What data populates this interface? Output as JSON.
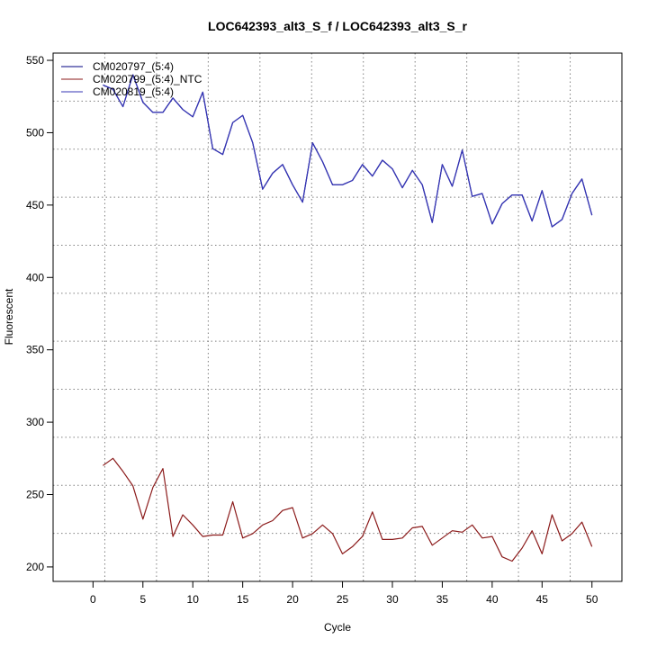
{
  "chart_data": {
    "type": "line",
    "title": "LOC642393_alt3_S_f / LOC642393_alt3_S_r",
    "xlabel": "Cycle",
    "ylabel": "Fluorescent",
    "xlim": [
      -4,
      53
    ],
    "ylim": [
      190,
      555
    ],
    "xticks": [
      0,
      5,
      10,
      15,
      20,
      25,
      30,
      35,
      40,
      45,
      50
    ],
    "yticks": [
      200,
      250,
      300,
      350,
      400,
      450,
      500,
      550
    ],
    "grid": true,
    "legend_position": "top-left",
    "x": [
      1,
      2,
      3,
      4,
      5,
      6,
      7,
      8,
      9,
      10,
      11,
      12,
      13,
      14,
      15,
      16,
      17,
      18,
      19,
      20,
      21,
      22,
      23,
      24,
      25,
      26,
      27,
      28,
      29,
      30,
      31,
      32,
      33,
      34,
      35,
      36,
      37,
      38,
      39,
      40,
      41,
      42,
      43,
      44,
      45,
      46,
      47,
      48,
      49,
      50
    ],
    "series": [
      {
        "name": "CM020797_(5:4)",
        "color": "#000080",
        "values": [
          533,
          530,
          518,
          540,
          521,
          514,
          514,
          524,
          516,
          511,
          528,
          489,
          485,
          507,
          512,
          493,
          461,
          472,
          478,
          464,
          452,
          493,
          480,
          464,
          464,
          467,
          478,
          470,
          481,
          475,
          462,
          474,
          464,
          438,
          478,
          463,
          488,
          456,
          458,
          437,
          451,
          457,
          457,
          439,
          460,
          435,
          440,
          458,
          468,
          443
        ]
      },
      {
        "name": "CM020799_(5:4)_NTC",
        "color": "#8b1a1a",
        "values": [
          270,
          275,
          266,
          256,
          233,
          255,
          268,
          221,
          236,
          229,
          221,
          222,
          222,
          245,
          220,
          223,
          229,
          232,
          239,
          241,
          220,
          223,
          229,
          223,
          209,
          214,
          221,
          238,
          219,
          219,
          220,
          227,
          228,
          215,
          220,
          225,
          224,
          229,
          220,
          221,
          207,
          204,
          213,
          225,
          209,
          236,
          218,
          223,
          231,
          214
        ]
      },
      {
        "name": "CM020819_(5:4)",
        "color": "#3535b5",
        "values": [
          533,
          530,
          518,
          540,
          521,
          514,
          514,
          524,
          516,
          511,
          528,
          489,
          485,
          507,
          512,
          493,
          461,
          472,
          478,
          464,
          452,
          493,
          480,
          464,
          464,
          467,
          478,
          470,
          481,
          475,
          462,
          474,
          464,
          438,
          478,
          463,
          488,
          456,
          458,
          437,
          451,
          457,
          457,
          439,
          460,
          435,
          440,
          458,
          468,
          443
        ]
      }
    ]
  }
}
